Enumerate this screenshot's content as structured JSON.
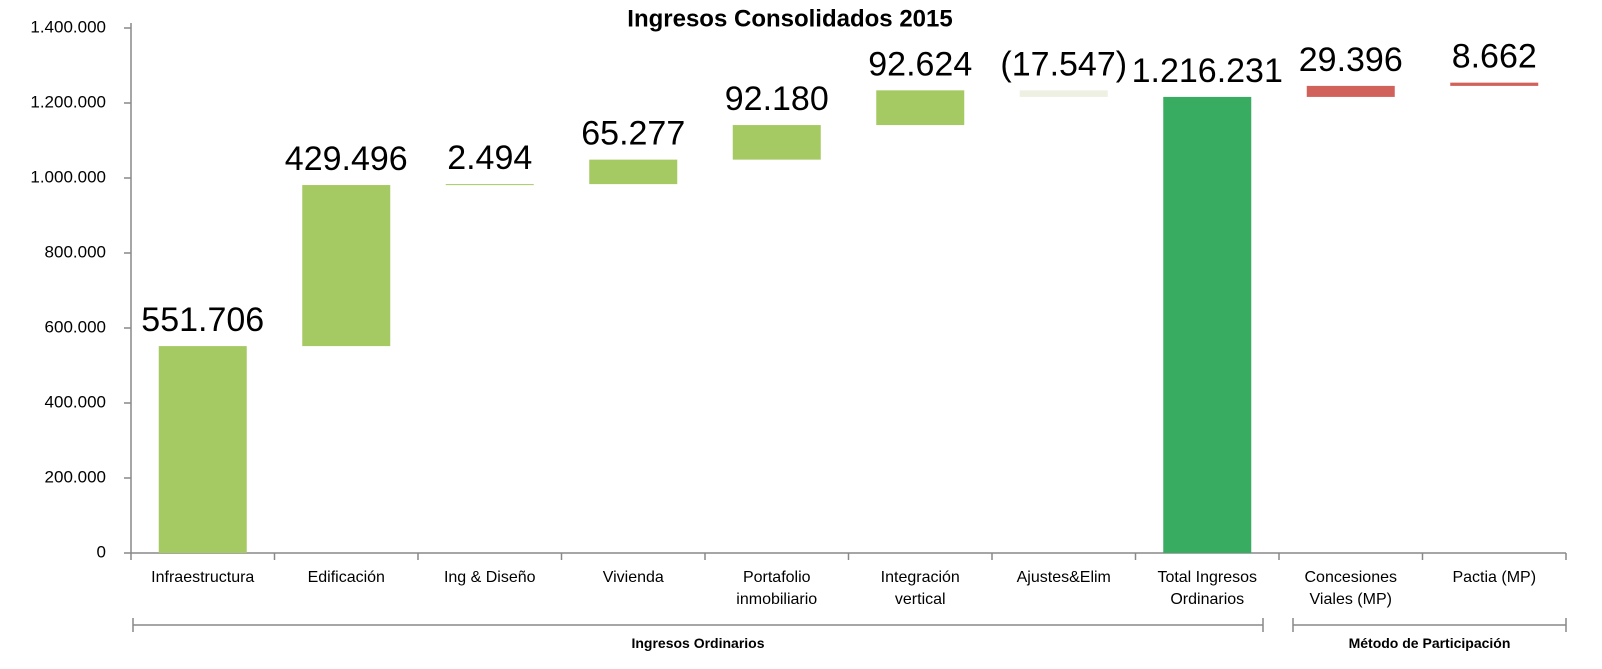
{
  "chart_data": {
    "type": "waterfall",
    "title": "Ingresos Consolidados 2015",
    "categories": [
      "Infraestructura",
      "Edificación",
      "Ing & Diseño",
      "Vivienda",
      "Portafolio inmobiliario",
      "Integración vertical",
      "Ajustes&Elim",
      "Total Ingresos Ordinarios",
      "Concesiones Viales (MP)",
      "Pactia (MP)"
    ],
    "values": [
      551706,
      429496,
      2494,
      65277,
      92180,
      92624,
      -17547,
      1216231,
      29396,
      8662
    ],
    "value_labels": [
      "551.706",
      "429.496",
      "2.494",
      "65.277",
      "92.180",
      "92.624",
      "(17.547)",
      "1.216.231",
      "29.396",
      "8.662"
    ],
    "is_total": [
      false,
      false,
      false,
      false,
      false,
      false,
      false,
      true,
      false,
      false
    ],
    "colors": [
      "#a5c963",
      "#a5c963",
      "#a5c963",
      "#a5c963",
      "#a5c963",
      "#a5c963",
      "#eef0e2",
      "#38ad62",
      "#d0625b",
      "#d0625b"
    ],
    "groups": [
      {
        "label": "Ingresos Ordinarios",
        "span": 8
      },
      {
        "label": "Método de Participación",
        "span": 2
      }
    ],
    "ylim": [
      0,
      1400000
    ],
    "yticks": [
      0,
      {
        "value": 200000,
        "label": "200.000"
      },
      {
        "value": 400000,
        "label": "400.000"
      },
      {
        "value": 600000,
        "label": "600.000"
      },
      {
        "value": 800000,
        "label": "800.000"
      },
      {
        "value": 1000000,
        "label": "1.000.000"
      },
      {
        "value": 1200000,
        "label": "1.200.000"
      },
      {
        "value": 1400000,
        "label": "1.400.000"
      }
    ]
  }
}
